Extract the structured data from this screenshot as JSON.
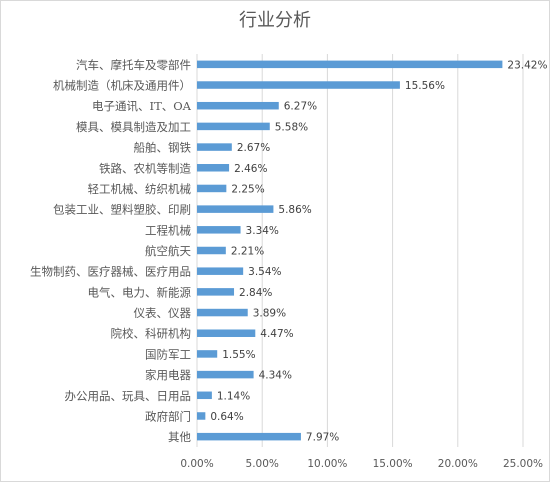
{
  "chart_data": {
    "type": "bar",
    "orientation": "horizontal",
    "title": "行业分析",
    "categories": [
      "汽车、摩托车及零部件",
      "机械制造（机床及通用件）",
      "电子通讯、IT、OA",
      "模具、模具制造及加工",
      "船舶、钢铁",
      "铁路、农机等制造",
      "轻工机械、纺织机械",
      "包装工业、塑料塑胶、印刷",
      "工程机械",
      "航空航天",
      "生物制药、医疗器械、医疗用品",
      "电气、电力、新能源",
      "仪表、仪器",
      "院校、科研机构",
      "国防军工",
      "家用电器",
      "办公用品、玩具、日用品",
      "政府部门",
      "其他"
    ],
    "values": [
      23.42,
      15.56,
      6.27,
      5.58,
      2.67,
      2.46,
      2.25,
      5.86,
      3.34,
      2.21,
      3.54,
      2.84,
      3.89,
      4.47,
      1.55,
      4.34,
      1.14,
      0.64,
      7.97
    ],
    "value_labels": [
      "23.42%",
      "15.56%",
      "6.27%",
      "5.58%",
      "2.67%",
      "2.46%",
      "2.25%",
      "5.86%",
      "3.34%",
      "2.21%",
      "3.54%",
      "2.84%",
      "3.89%",
      "4.47%",
      "1.55%",
      "4.34%",
      "1.14%",
      "0.64%",
      "7.97%"
    ],
    "xlim": [
      0,
      25
    ],
    "xticks": [
      0,
      5,
      10,
      15,
      20,
      25
    ],
    "xtick_labels": [
      "0.00%",
      "5.00%",
      "10.00%",
      "15.00%",
      "20.00%",
      "25.00%"
    ],
    "xlabel": "",
    "ylabel": "",
    "grid": true,
    "legend": "none",
    "colors": {
      "bar": "#5b9bd5",
      "grid": "#d9d9d9",
      "text": "#595959",
      "border": "#d9d9d9"
    }
  }
}
